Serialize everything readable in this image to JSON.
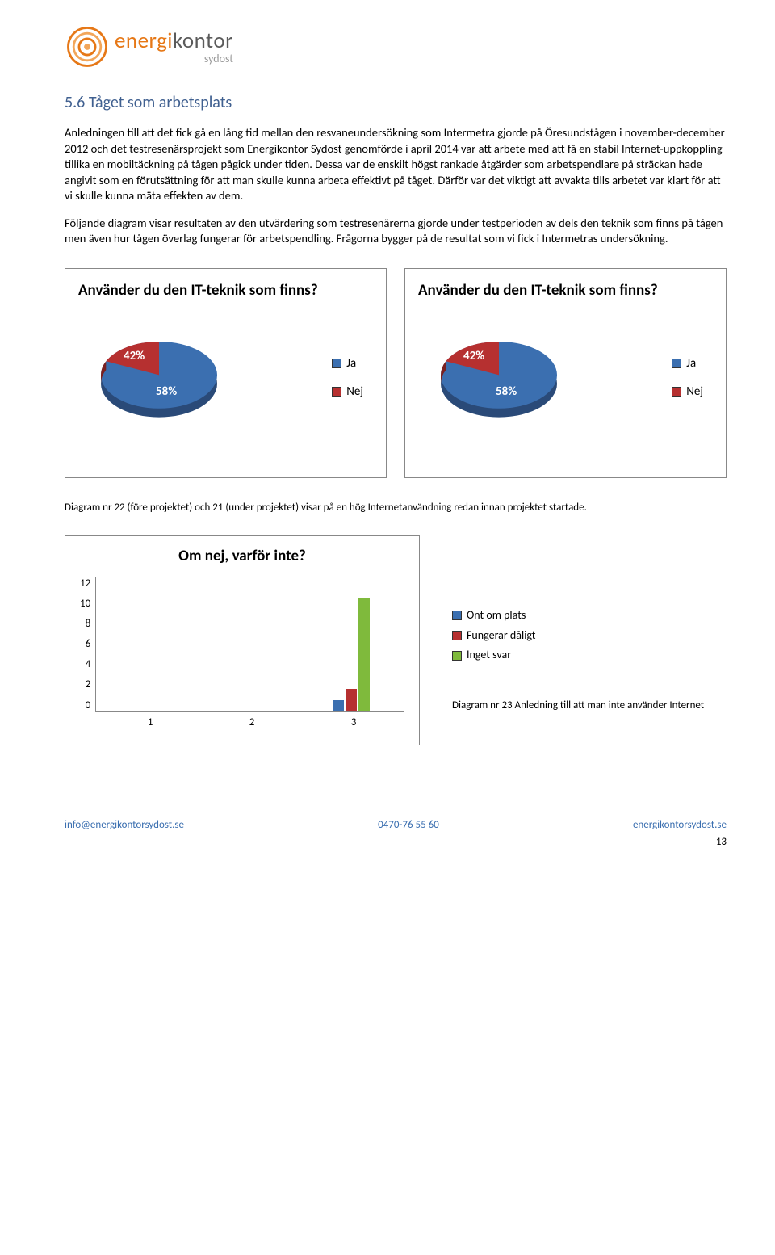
{
  "logo": {
    "word_energi": "energi",
    "word_kontor": "kontor",
    "sub": "sydost",
    "swirl_outer": "#e67817",
    "swirl_inner": "#f2a65a"
  },
  "heading": "5.6 Tåget som arbetsplats",
  "heading_color": "#406090",
  "para1": "Anledningen till att det fick gå en lång tid mellan den resvaneundersökning som Intermetra gjorde på Öresundstågen i november-december 2012 och det testresenärsprojekt som Energikontor Sydost genomförde i april 2014 var att arbete med att få en stabil Internet-uppkoppling tillika en mobiltäckning på tågen pågick under tiden. Dessa var de enskilt högst rankade åtgärder som arbetspendlare på sträckan hade angivit som en förutsättning för att man skulle kunna arbeta effektivt på tåget. Därför var det viktigt att avvakta tills arbetet var klart för att vi skulle kunna mäta effekten av dem.",
  "para2": "Följande diagram visar resultaten av den utvärdering som testresenärerna gjorde under testperioden av dels den teknik som finns på tågen men även hur tågen överlag fungerar för arbetspendling. Frågorna bygger på de resultat som vi fick i Intermetras undersökning.",
  "pie_charts": {
    "title": "Använder du den IT-teknik som finns?",
    "slice_ja": {
      "label": "Ja",
      "pct": 58,
      "color": "#3b6fb0",
      "pct_label": "58%"
    },
    "slice_nej": {
      "label": "Nej",
      "pct": 42,
      "color": "#b63030",
      "pct_label": "42%"
    }
  },
  "caption_pie": "Diagram nr 22 (före projektet) och 21 (under projektet) visar på en hög Internetanvändning redan innan projektet startade.",
  "bar_chart": {
    "title": "Om nej, varför inte?",
    "ymax": 12,
    "yticks": [
      "12",
      "10",
      "8",
      "6",
      "4",
      "2",
      "0"
    ],
    "categories": [
      "1",
      "2",
      "3"
    ],
    "series": [
      {
        "label": "Ont om plats",
        "color": "#3b6fb0",
        "values": [
          0,
          0,
          1
        ]
      },
      {
        "label": "Fungerar dåligt",
        "color": "#b63030",
        "values": [
          0,
          0,
          2
        ]
      },
      {
        "label": "Inget svar",
        "color": "#7fba3c",
        "values": [
          0,
          0,
          10
        ]
      }
    ]
  },
  "caption_bar": "Diagram nr 23 Anledning till att man inte använder Internet",
  "footer": {
    "email": "info@energikontorsydost.se",
    "phone": "0470-76 55 60",
    "url": "energikontorsydost.se",
    "pagenum": "13"
  }
}
